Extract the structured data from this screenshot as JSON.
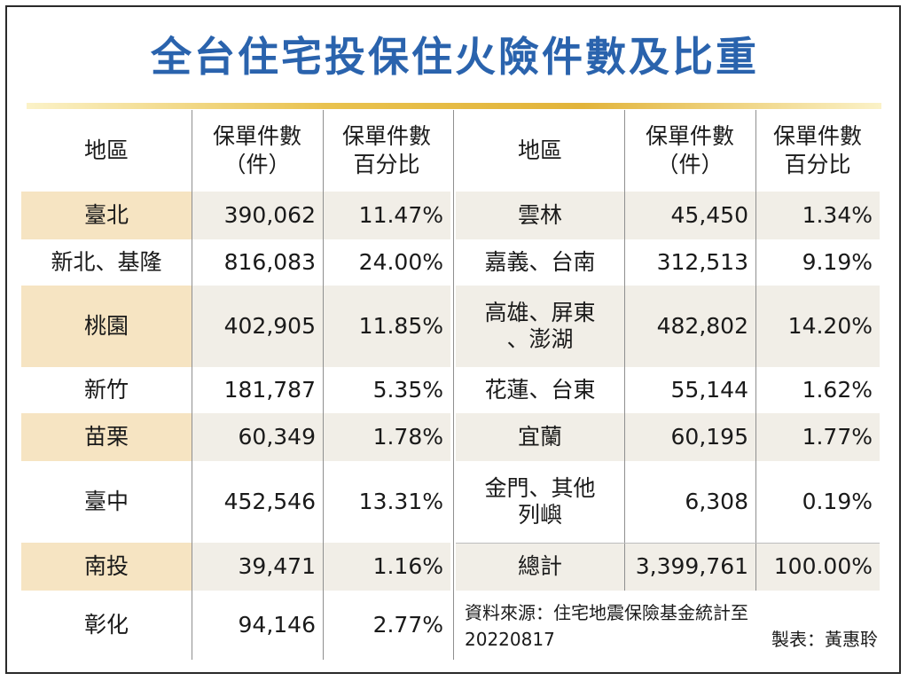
{
  "title": "全台住宅投保住火險件數及比重",
  "headers": {
    "region": "地區",
    "count_line1": "保單件數",
    "count_line2": "（件）",
    "pct_line1": "保單件數",
    "pct_line2": "百分比"
  },
  "left_rows": [
    {
      "region": "臺北",
      "count": "390,062",
      "pct": "11.47%"
    },
    {
      "region": "新北、基隆",
      "count": "816,083",
      "pct": "24.00%"
    },
    {
      "region": "桃園",
      "count": "402,905",
      "pct": "11.85%"
    },
    {
      "region": "新竹",
      "count": "181,787",
      "pct": "5.35%"
    },
    {
      "region": "苗栗",
      "count": "60,349",
      "pct": "1.78%"
    },
    {
      "region": "臺中",
      "count": "452,546",
      "pct": "13.31%"
    },
    {
      "region": "南投",
      "count": "39,471",
      "pct": "1.16%"
    },
    {
      "region": "彰化",
      "count": "94,146",
      "pct": "2.77%"
    }
  ],
  "right_rows": [
    {
      "region_line1": "雲林",
      "region_line2": "",
      "count": "45,450",
      "pct": "1.34%"
    },
    {
      "region_line1": "嘉義、台南",
      "region_line2": "",
      "count": "312,513",
      "pct": "9.19%"
    },
    {
      "region_line1": "高雄、屏東",
      "region_line2": "、澎湖",
      "count": "482,802",
      "pct": "14.20%"
    },
    {
      "region_line1": "花蓮、台東",
      "region_line2": "",
      "count": "55,144",
      "pct": "1.62%"
    },
    {
      "region_line1": "宜蘭",
      "region_line2": "",
      "count": "60,195",
      "pct": "1.77%"
    },
    {
      "region_line1": "金門、其他",
      "region_line2": "列嶼",
      "count": "6,308",
      "pct": "0.19%"
    },
    {
      "region_line1": "總計",
      "region_line2": "",
      "count": "3,399,761",
      "pct": "100.00%"
    }
  ],
  "source_line1": "資料來源：住宅地震保險基金統計至",
  "source_line2": "20220817",
  "author": "製表：黃惠聆",
  "colors": {
    "title": "#2a63ad",
    "gold_bar": "#e2b43a",
    "row_shade": "#f1eee7",
    "region_shade": "#f6e4c2"
  }
}
